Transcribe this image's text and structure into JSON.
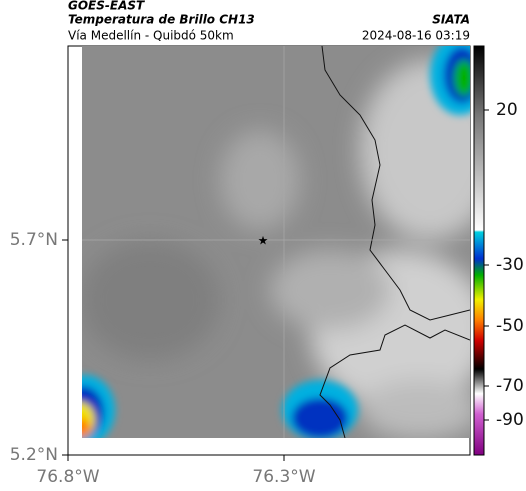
{
  "header": {
    "source": "GOES-EAST",
    "title": "Temperatura de Brillo CH13",
    "subtitle": "Vía Medellín - Quibdó 50km",
    "organization": "SIATA",
    "datetime": "2024-08-16 03:19"
  },
  "axes": {
    "latitude_labels": [
      "5.7°N",
      "5.2°N"
    ],
    "longitude_labels": [
      "76.8°W",
      "76.3°W"
    ]
  },
  "colorbar": {
    "labels": [
      "20",
      "-30",
      "-50",
      "-70",
      "-90"
    ]
  }
}
